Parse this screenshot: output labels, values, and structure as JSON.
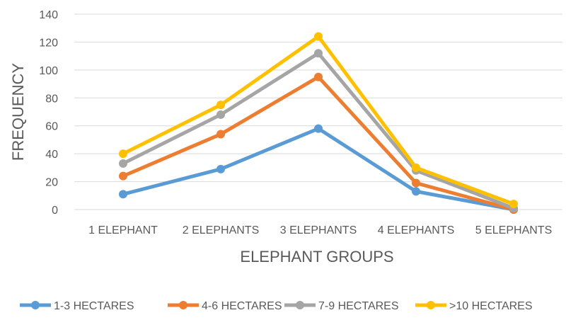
{
  "chart_data": {
    "type": "line",
    "title": "",
    "xlabel": "ELEPHANT GROUPS",
    "ylabel": "FREQUENCY",
    "categories": [
      "1 ELEPHANT",
      "2 ELEPHANTS",
      "3 ELEPHANTS",
      "4 ELEPHANTS",
      "5 ELEPHANTS"
    ],
    "ylim": [
      0,
      140
    ],
    "yticks": [
      0,
      20,
      40,
      60,
      80,
      100,
      120,
      140
    ],
    "grid": true,
    "legend_position": "bottom",
    "series": [
      {
        "name": "1-3 HECTARES",
        "color": "#5b9bd5",
        "values": [
          11,
          29,
          58,
          13,
          0
        ]
      },
      {
        "name": "4-6 HECTARES",
        "color": "#ed7d31",
        "values": [
          24,
          54,
          95,
          19,
          0
        ]
      },
      {
        "name": "7-9 HECTARES",
        "color": "#a5a5a5",
        "values": [
          33,
          68,
          112,
          28,
          1
        ]
      },
      {
        "name": ">10 HECTARES",
        "color": "#ffc000",
        "values": [
          40,
          75,
          124,
          30,
          4
        ]
      }
    ]
  }
}
